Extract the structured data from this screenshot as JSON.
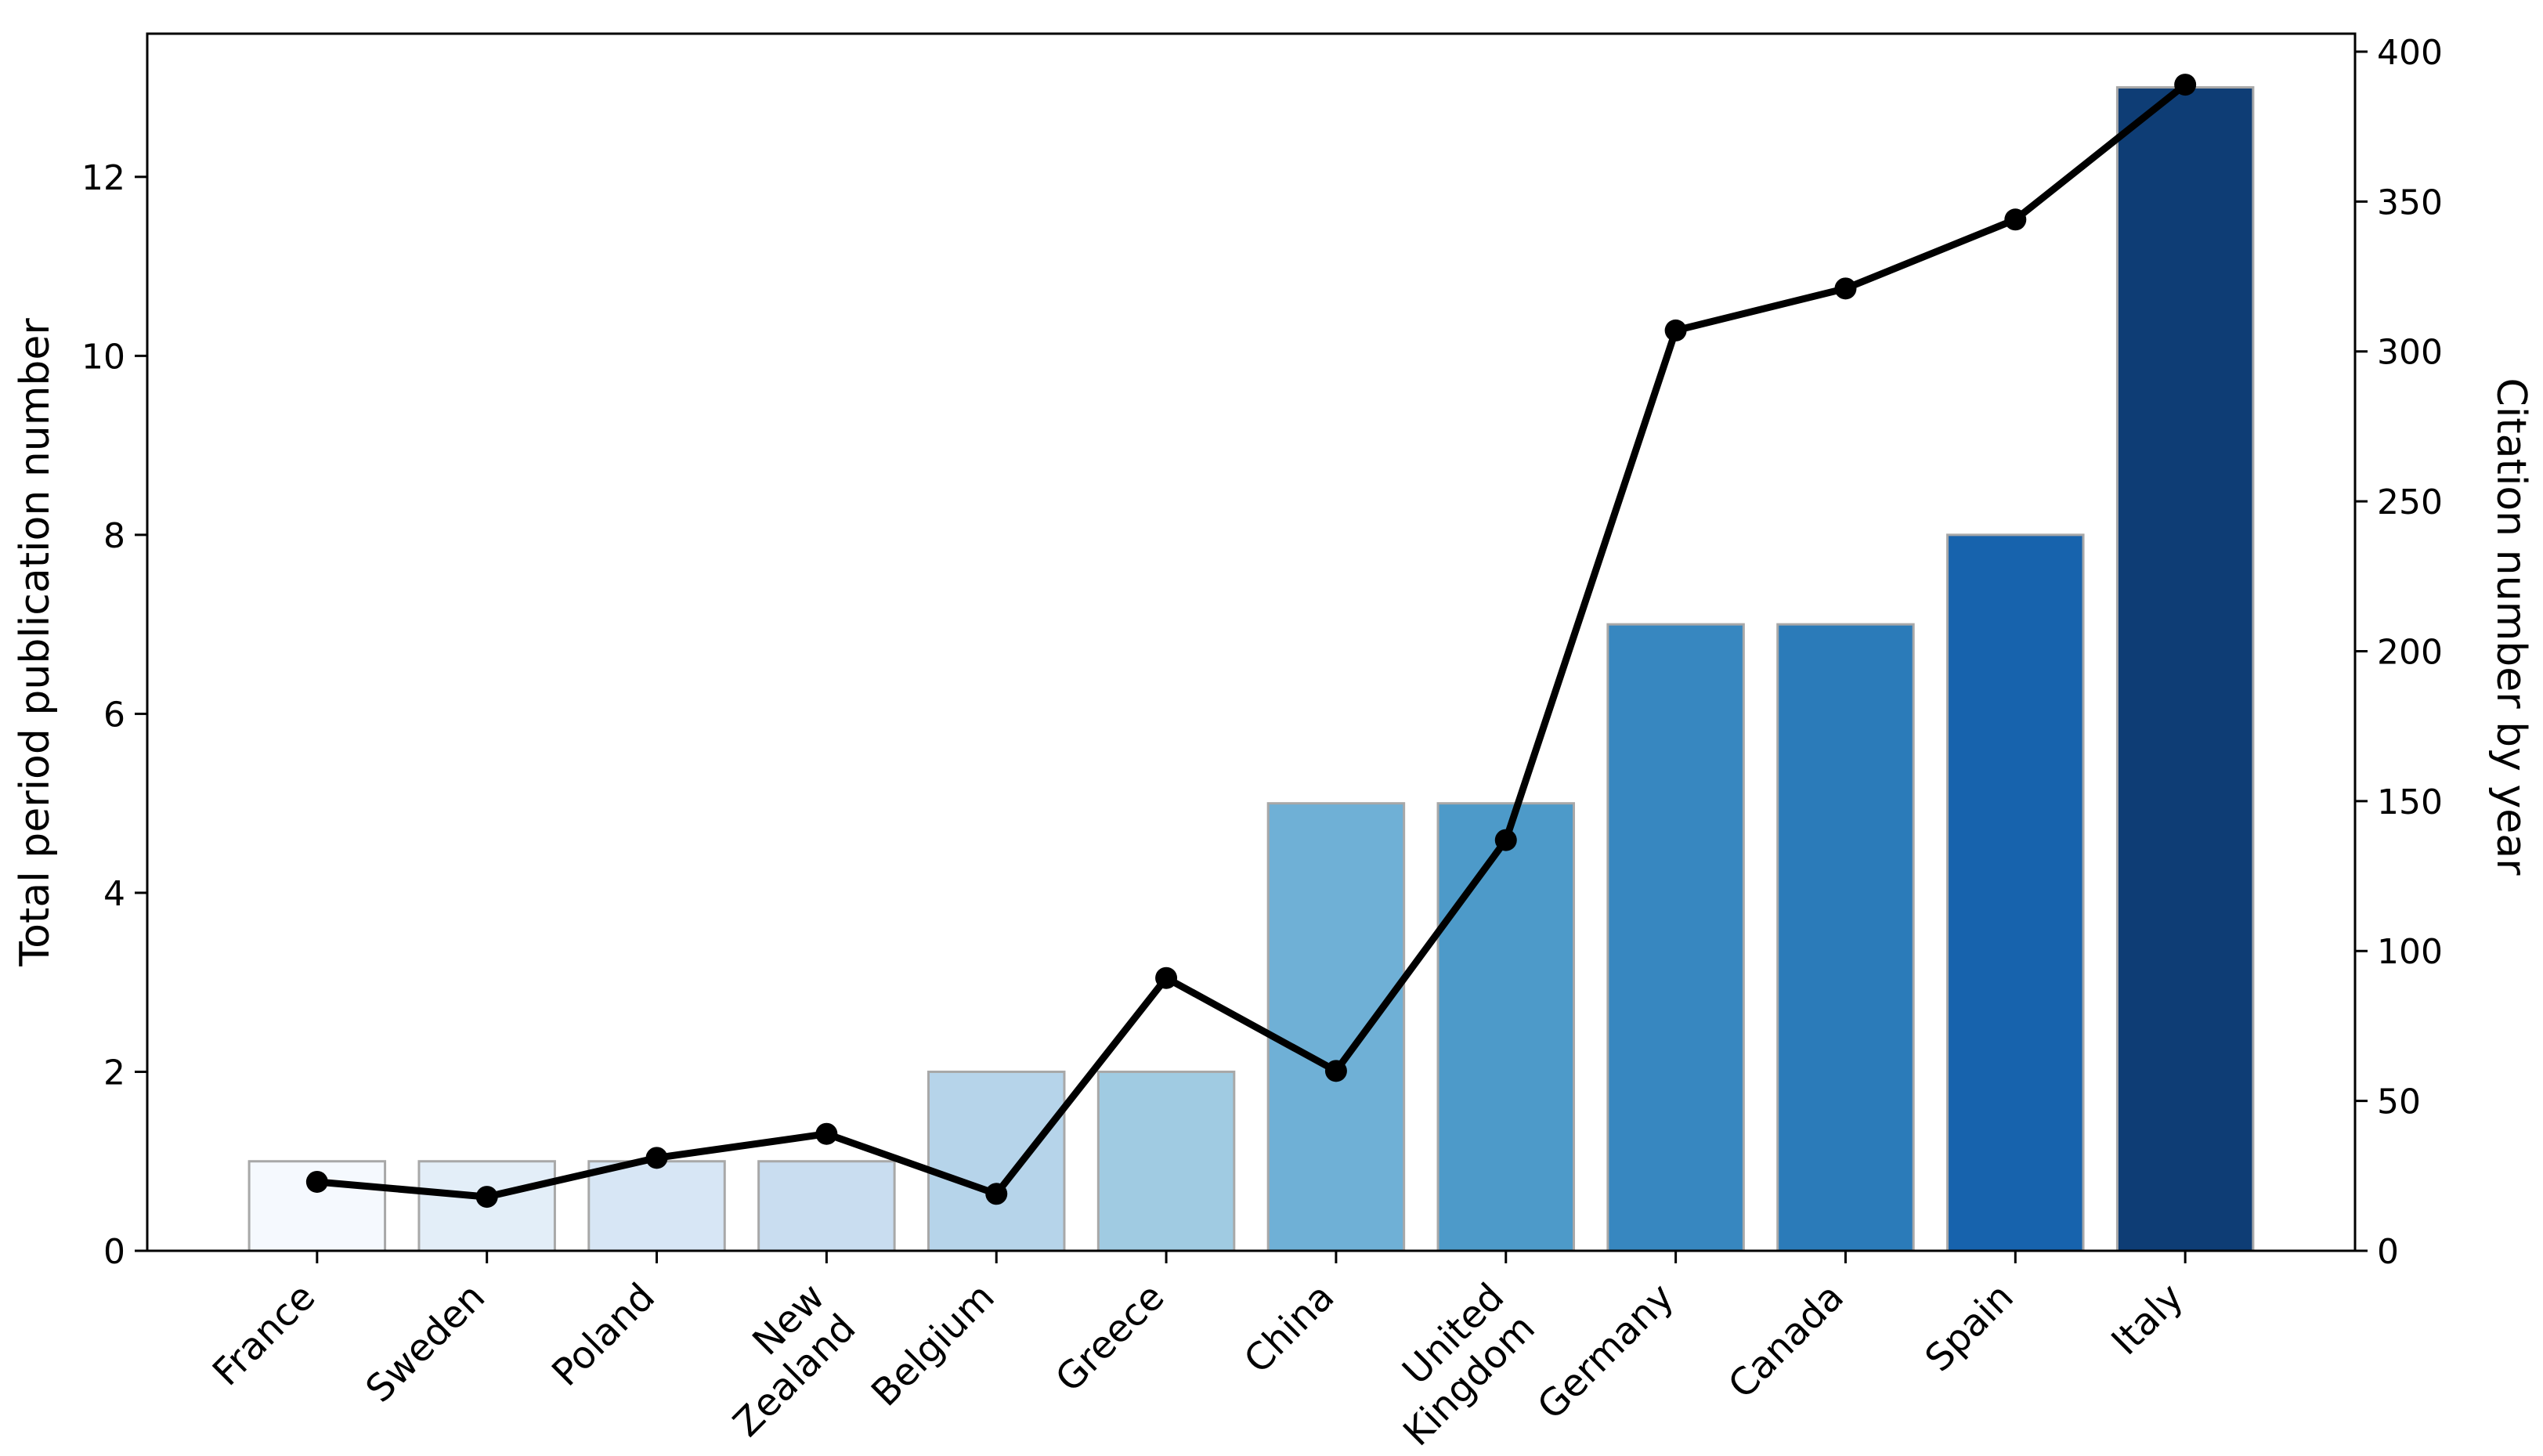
{
  "figure": {
    "background": "#ffffff",
    "left_axis_label": "Total period publication number",
    "right_axis_label": "Citation number by year"
  },
  "chart_data": {
    "type": "bar",
    "subtype": "bar-line-combo",
    "title": "",
    "categories": [
      "France",
      "Sweden",
      "Poland",
      "New\nZealand",
      "Belgium",
      "Greece",
      "China",
      "United\nKingdom",
      "Germany",
      "Canada",
      "Spain",
      "Italy"
    ],
    "series": [
      {
        "name": "Total period publication number",
        "type": "bar",
        "axis": "left",
        "values": [
          1,
          1,
          1,
          1,
          2,
          2,
          5,
          5,
          7,
          7,
          8,
          13
        ]
      },
      {
        "name": "Citation number by year",
        "type": "line",
        "axis": "right",
        "values": [
          23,
          18,
          31,
          39,
          19,
          91,
          60,
          137,
          307,
          321,
          344,
          389
        ]
      }
    ],
    "bar_colors": [
      "#f5f9fe",
      "#e3eef8",
      "#d7e6f5",
      "#c9ddf0",
      "#b6d4ea",
      "#a0cbe2",
      "#6fb0d6",
      "#4d9ac9",
      "#3787c0",
      "#2b7bb9",
      "#1763ad",
      "#0e3d75"
    ],
    "bar_edge_color": "#a8a8a8",
    "line_color": "#000000",
    "marker_color": "#000000",
    "left_axis": {
      "label": "Total period publication number",
      "ticks": [
        0,
        2,
        4,
        6,
        8,
        10,
        12
      ],
      "range": [
        0,
        13.6
      ]
    },
    "right_axis": {
      "label": "Citation number by year",
      "ticks": [
        0,
        50,
        100,
        150,
        200,
        250,
        300,
        350,
        400
      ],
      "range": [
        0,
        406
      ]
    },
    "xlabel": "",
    "ylabel": "Total period publication number",
    "grid": false,
    "legend": "none",
    "x_tick_rotation_deg": 45
  }
}
